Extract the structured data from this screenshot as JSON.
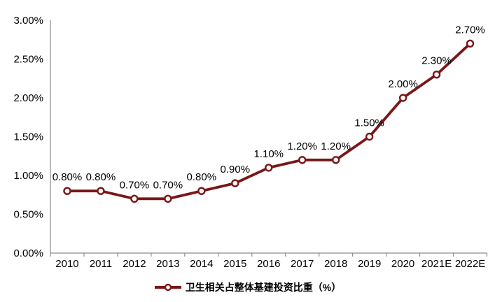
{
  "chart_data": {
    "type": "line",
    "title": "",
    "categories": [
      "2010",
      "2011",
      "2012",
      "2013",
      "2014",
      "2015",
      "2016",
      "2017",
      "2018",
      "2019",
      "2020",
      "2021E",
      "2022E"
    ],
    "series": [
      {
        "name": "卫生相关占整体基建投资比重（%）",
        "values": [
          0.8,
          0.8,
          0.7,
          0.7,
          0.8,
          0.9,
          1.1,
          1.2,
          1.2,
          1.5,
          2.0,
          2.3,
          2.7
        ],
        "point_labels": [
          "0.80%",
          "0.80%",
          "0.70%",
          "0.70%",
          "0.80%",
          "0.90%",
          "1.10%",
          "1.20%",
          "1.20%",
          "1.50%",
          "2.00%",
          "2.30%",
          "2.70%"
        ]
      }
    ],
    "xlabel": "",
    "ylabel": "",
    "ylim": [
      0,
      3
    ],
    "y_ticks": [
      {
        "value": 0.0,
        "label": "0.00%"
      },
      {
        "value": 0.5,
        "label": "0.50%"
      },
      {
        "value": 1.0,
        "label": "1.00%"
      },
      {
        "value": 1.5,
        "label": "1.50%"
      },
      {
        "value": 2.0,
        "label": "2.00%"
      },
      {
        "value": 2.5,
        "label": "2.50%"
      },
      {
        "value": 3.0,
        "label": "3.00%"
      }
    ],
    "grid": false,
    "legend": {
      "label": "卫生相关占整体基建投资比重（%）",
      "position": "bottom-center"
    },
    "colors": {
      "line": "#7A1618",
      "marker_fill": "#FFFFFF",
      "axis": "#8C8C8C",
      "text": "#000000"
    }
  }
}
